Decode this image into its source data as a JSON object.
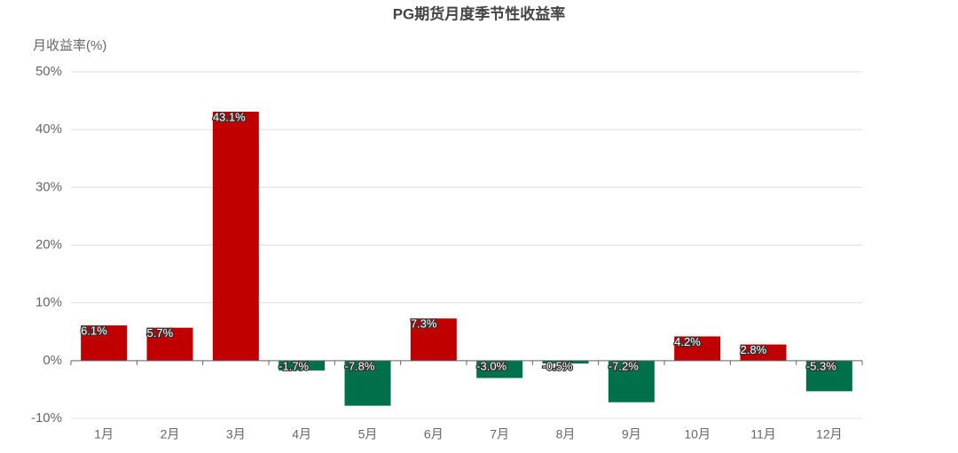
{
  "chart_data": {
    "type": "bar",
    "title": "PG期货月度季节性收益率",
    "y_label": "月收益率(%)",
    "categories": [
      "1月",
      "2月",
      "3月",
      "4月",
      "5月",
      "6月",
      "7月",
      "8月",
      "9月",
      "10月",
      "11月",
      "12月"
    ],
    "values": [
      6.1,
      5.7,
      43.1,
      -1.7,
      -7.8,
      7.3,
      -3.0,
      -0.5,
      -7.2,
      4.2,
      2.8,
      -5.3
    ],
    "value_labels": [
      "6.1%",
      "5.7%",
      "43.1%",
      "-1.7%",
      "-7.8%",
      "7.3%",
      "-3.0%",
      "-0.5%",
      "-7.2%",
      "4.2%",
      "2.8%",
      "-5.3%"
    ],
    "positive_color": "#c00000",
    "negative_color": "#00704a",
    "ylim": [
      -10,
      50
    ],
    "yticks": [
      {
        "value": -10,
        "label": "-10%"
      },
      {
        "value": 0,
        "label": "0%"
      },
      {
        "value": 10,
        "label": "10%"
      },
      {
        "value": 20,
        "label": "20%"
      },
      {
        "value": 30,
        "label": "30%"
      },
      {
        "value": 40,
        "label": "40%"
      },
      {
        "value": 50,
        "label": "50%"
      }
    ],
    "grid": true
  }
}
